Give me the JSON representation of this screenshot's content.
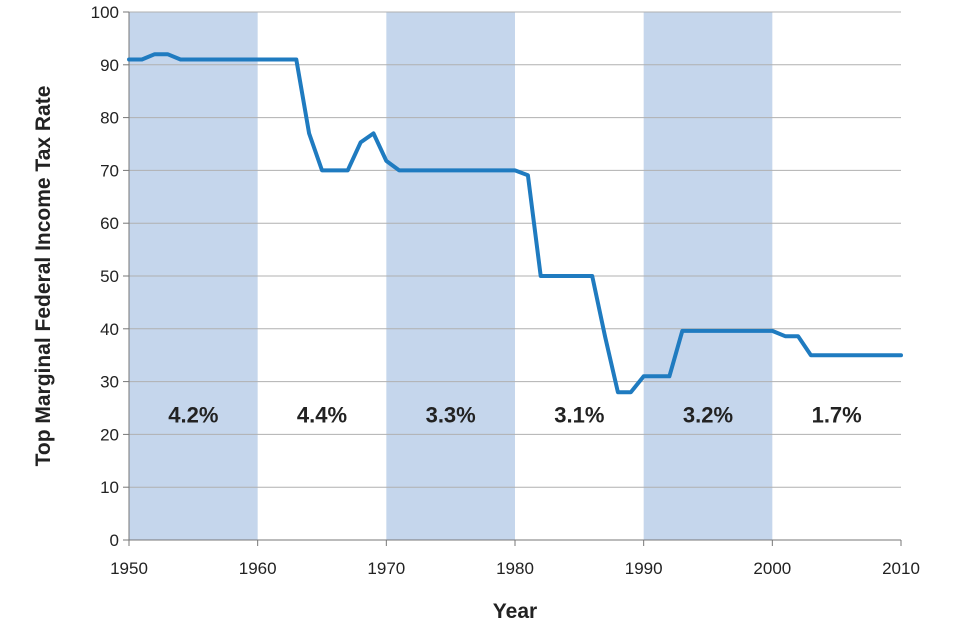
{
  "chart_data": {
    "type": "line",
    "title": "",
    "xlabel": "Year",
    "ylabel": "Top Marginal Federal Income Tax Rate",
    "xlim": [
      1950,
      2010
    ],
    "ylim": [
      0,
      100
    ],
    "xticks": [
      1950,
      1960,
      1970,
      1980,
      1990,
      2000,
      2010
    ],
    "yticks": [
      0,
      10,
      20,
      30,
      40,
      50,
      60,
      70,
      80,
      90,
      100
    ],
    "grid": "horizontal",
    "series": [
      {
        "color": "#1f7bc0",
        "x": [
          1950,
          1951,
          1952,
          1953,
          1954,
          1955,
          1956,
          1957,
          1958,
          1959,
          1960,
          1961,
          1962,
          1963,
          1964,
          1965,
          1966,
          1967,
          1968,
          1969,
          1970,
          1971,
          1972,
          1973,
          1974,
          1975,
          1976,
          1977,
          1978,
          1979,
          1980,
          1981,
          1982,
          1983,
          1984,
          1985,
          1986,
          1987,
          1988,
          1989,
          1990,
          1991,
          1992,
          1993,
          1994,
          1995,
          1996,
          1997,
          1998,
          1999,
          2000,
          2001,
          2002,
          2003,
          2004,
          2005,
          2006,
          2007,
          2008,
          2009,
          2010
        ],
        "values": [
          91,
          91,
          92,
          92,
          91,
          91,
          91,
          91,
          91,
          91,
          91,
          91,
          91,
          91,
          77,
          70,
          70,
          70,
          75.3,
          77,
          71.8,
          70,
          70,
          70,
          70,
          70,
          70,
          70,
          70,
          70,
          70,
          69.1,
          50,
          50,
          50,
          50,
          50,
          38.5,
          28,
          28,
          31,
          31,
          31,
          39.6,
          39.6,
          39.6,
          39.6,
          39.6,
          39.6,
          39.6,
          39.6,
          38.6,
          38.6,
          35,
          35,
          35,
          35,
          35,
          35,
          35,
          35
        ]
      }
    ],
    "shaded_periods": [
      {
        "start": 1950,
        "end": 1960,
        "shaded": true,
        "label": "4.2%"
      },
      {
        "start": 1960,
        "end": 1970,
        "shaded": false,
        "label": "4.4%"
      },
      {
        "start": 1970,
        "end": 1980,
        "shaded": true,
        "label": "3.3%"
      },
      {
        "start": 1980,
        "end": 1990,
        "shaded": false,
        "label": "3.1%"
      },
      {
        "start": 1990,
        "end": 2000,
        "shaded": true,
        "label": "3.2%"
      },
      {
        "start": 2000,
        "end": 2010,
        "shaded": false,
        "label": "1.7%"
      }
    ],
    "shade_color": "#c5d6ec",
    "label_level": 23
  }
}
